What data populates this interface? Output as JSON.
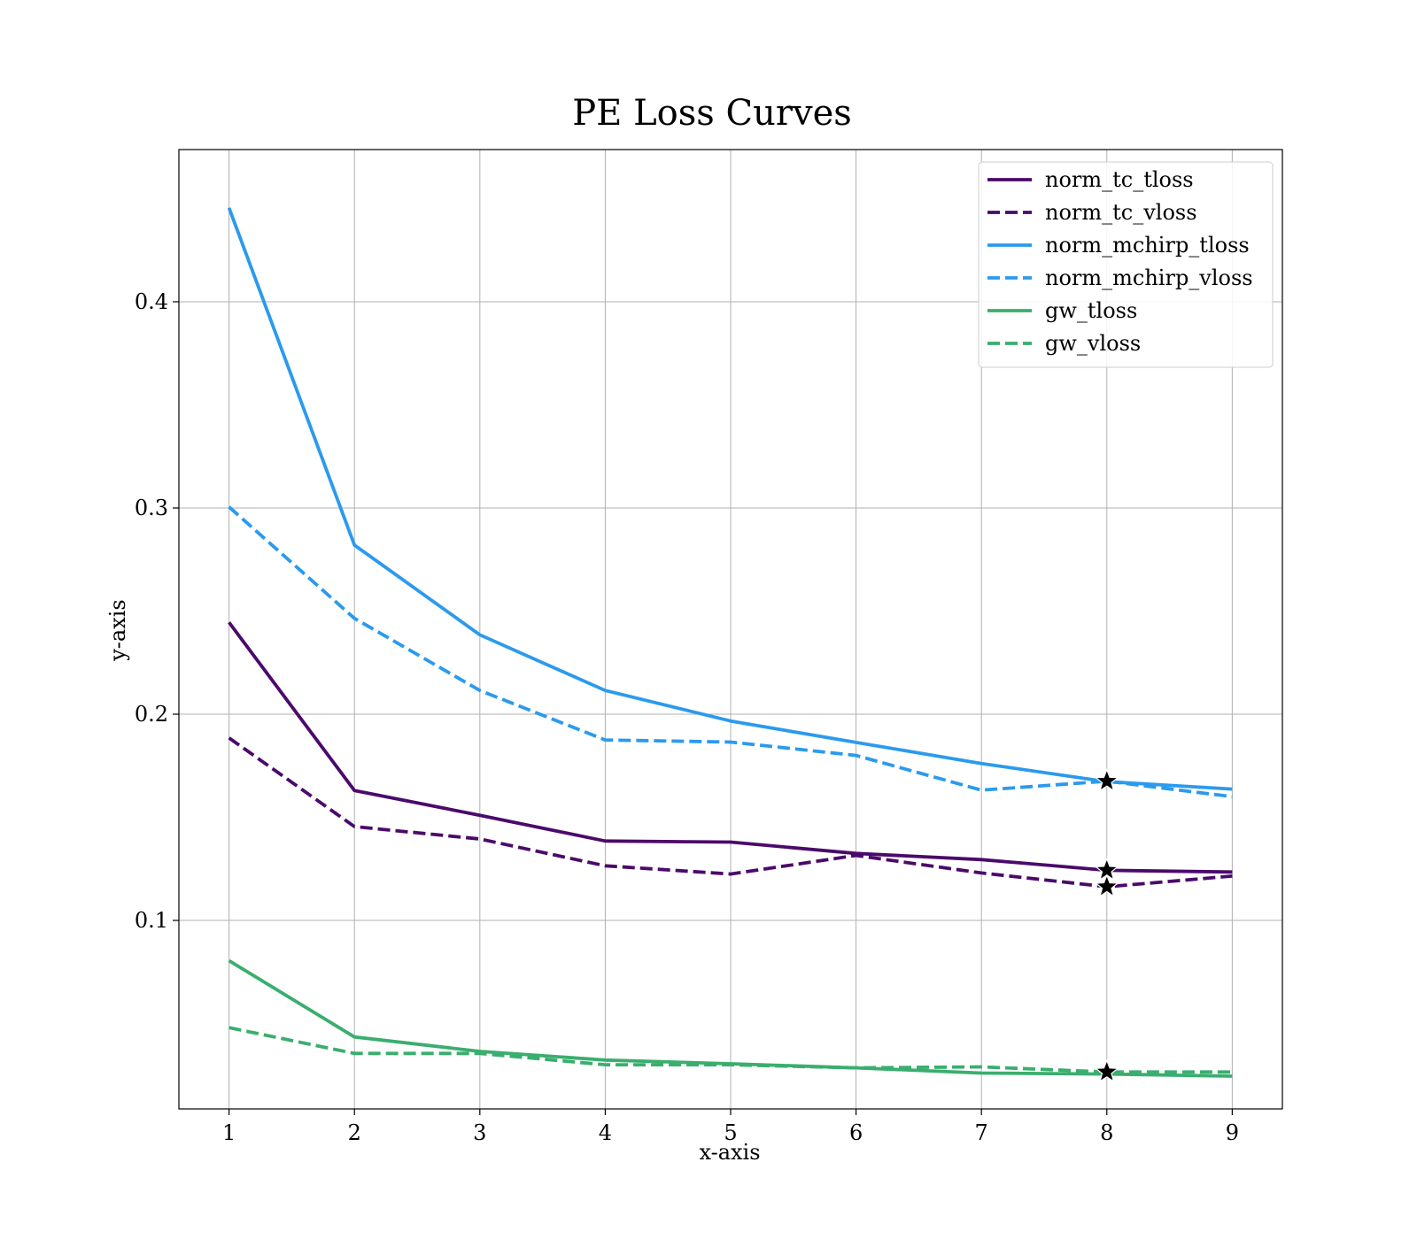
{
  "chart_data": {
    "type": "line",
    "title": "PE Loss Curves",
    "xlabel": "x-axis",
    "ylabel": "y-axis",
    "xlim": [
      0.6,
      9.4
    ],
    "ylim": [
      0.0086,
      0.4738
    ],
    "x": [
      1,
      2,
      3,
      4,
      5,
      6,
      7,
      8,
      9
    ],
    "xticks": [
      1,
      2,
      3,
      4,
      5,
      6,
      7,
      8,
      9
    ],
    "yticks": [
      0.1,
      0.2,
      0.3,
      0.4
    ],
    "ytick_labels": [
      "0.1",
      "0.2",
      "0.3",
      "0.4"
    ],
    "grid": true,
    "legend_position": "top-right",
    "series": [
      {
        "name": "norm_tc_tloss",
        "color": "#4b0a6b",
        "dash": "solid",
        "values": [
          0.2445,
          0.163,
          0.151,
          0.1385,
          0.138,
          0.1325,
          0.1295,
          0.1243,
          0.1235
        ]
      },
      {
        "name": "norm_tc_vloss",
        "color": "#4b0a6b",
        "dash": "dashed",
        "values": [
          0.1885,
          0.1455,
          0.1395,
          0.1265,
          0.1225,
          0.1315,
          0.123,
          0.1163,
          0.1215
        ]
      },
      {
        "name": "norm_mchirp_tloss",
        "color": "#2b9aed",
        "dash": "solid",
        "values": [
          0.4455,
          0.282,
          0.2385,
          0.2115,
          0.1967,
          0.1863,
          0.1761,
          0.1673,
          0.1637
        ]
      },
      {
        "name": "norm_mchirp_vloss",
        "color": "#2b9aed",
        "dash": "dashed",
        "values": [
          0.3005,
          0.2465,
          0.2115,
          0.1875,
          0.1865,
          0.18,
          0.1632,
          0.1675,
          0.16
        ]
      },
      {
        "name": "gw_tloss",
        "color": "#3aae6e",
        "dash": "solid",
        "values": [
          0.0805,
          0.0435,
          0.0365,
          0.0323,
          0.0305,
          0.0285,
          0.026,
          0.0255,
          0.0245
        ]
      },
      {
        "name": "gw_vloss",
        "color": "#3aae6e",
        "dash": "dashed",
        "values": [
          0.048,
          0.0355,
          0.0355,
          0.03,
          0.03,
          0.0285,
          0.029,
          0.0265,
          0.0265
        ]
      }
    ],
    "markers": [
      {
        "series": "norm_mchirp_vloss",
        "x": 8,
        "y": 0.1675,
        "shape": "star",
        "color": "#000000"
      },
      {
        "series": "norm_tc_tloss",
        "x": 8,
        "y": 0.1243,
        "shape": "star",
        "color": "#000000"
      },
      {
        "series": "norm_tc_vloss",
        "x": 8,
        "y": 0.1163,
        "shape": "star",
        "color": "#000000"
      },
      {
        "series": "gw_vloss",
        "x": 8,
        "y": 0.0265,
        "shape": "star",
        "color": "#000000"
      }
    ]
  }
}
